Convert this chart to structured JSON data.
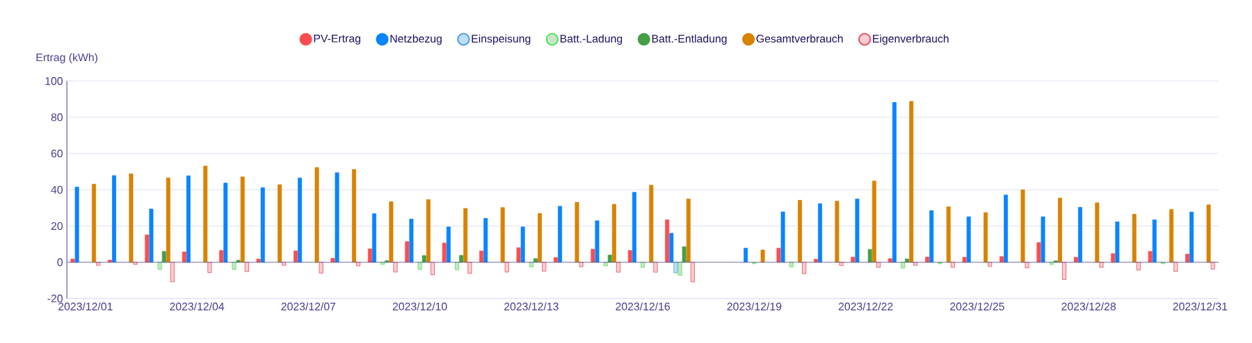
{
  "chart_data": {
    "type": "bar",
    "ylabel": "Ertrag (kWh)",
    "categories": [
      "2023/12/01",
      null,
      null,
      "2023/12/04",
      null,
      null,
      "2023/12/07",
      null,
      null,
      "2023/12/10",
      null,
      null,
      "2023/12/13",
      null,
      null,
      "2023/12/16",
      null,
      null,
      "2023/12/19",
      null,
      null,
      "2023/12/22",
      null,
      null,
      "2023/12/25",
      null,
      null,
      "2023/12/28",
      null,
      null,
      "2023/12/31"
    ],
    "series": [
      {
        "name": "PV-Ertrag",
        "color": "#ff4d4f",
        "values": [
          1.8,
          1.2,
          15.1,
          5.7,
          6.5,
          1.8,
          6.3,
          2.2,
          7.4,
          11.4,
          10.6,
          6.2,
          8.0,
          2.6,
          7.2,
          6.5,
          23.4,
          0,
          0,
          7.8,
          1.7,
          2.9,
          2.0,
          2.9,
          2.8,
          3.1,
          10.9,
          2.8,
          4.8,
          6.0,
          4.5
        ]
      },
      {
        "name": "Netzbezug",
        "color": "#0a84ff",
        "values": [
          41.5,
          47.8,
          29.4,
          47.7,
          43.7,
          41.2,
          46.5,
          49.4,
          26.8,
          23.8,
          19.5,
          24.2,
          19.5,
          30.9,
          22.9,
          38.6,
          16.0,
          0,
          7.8,
          27.8,
          32.3,
          34.9,
          88.2,
          28.5,
          25.1,
          37.1,
          25.1,
          30.3,
          22.3,
          23.4,
          27.7
        ]
      },
      {
        "name": "Einspeisung",
        "color": "#bfdfff",
        "values": [
          0,
          0,
          0,
          0,
          0,
          0,
          0,
          0,
          0,
          0,
          0,
          0,
          0,
          0,
          0,
          0,
          -5.8,
          0,
          0,
          0,
          0,
          0,
          0,
          0,
          0,
          0,
          0,
          0,
          0,
          0,
          0
        ]
      },
      {
        "name": "Batt.-Ladung",
        "color": "#c8e6c9",
        "values": [
          0,
          0,
          -4.0,
          0,
          -4.0,
          0,
          0,
          0,
          -1.2,
          -4.0,
          -4.2,
          0,
          -2.5,
          0,
          -2.0,
          -2.8,
          -7.2,
          0,
          -0.8,
          -2.6,
          0,
          0,
          -3.2,
          -0.8,
          0,
          0,
          -1.2,
          0,
          0,
          -0.8,
          0
        ]
      },
      {
        "name": "Batt.-Entladung",
        "color": "#43a047",
        "values": [
          0,
          0,
          6.0,
          0,
          1.1,
          0,
          0,
          0,
          0.9,
          3.7,
          3.8,
          0,
          2.0,
          0,
          4.0,
          null,
          8.6,
          0,
          0,
          0,
          0,
          7.1,
          1.8,
          0,
          0,
          0,
          0.8,
          0,
          0,
          0,
          0
        ]
      },
      {
        "name": "Gesamtverbrauch",
        "color": "#d98200",
        "values": [
          43.1,
          48.8,
          46.5,
          53.1,
          47.1,
          42.8,
          52.3,
          51.2,
          33.4,
          34.6,
          29.7,
          30.2,
          26.9,
          33.1,
          32.0,
          42.5,
          34.9,
          0,
          6.8,
          34.2,
          33.7,
          44.8,
          88.8,
          30.6,
          27.4,
          40.0,
          35.4,
          32.8,
          26.5,
          29.1,
          31.7
        ]
      },
      {
        "name": "Eigenverbrauch",
        "color": "#ffcdd2",
        "values": [
          -1.7,
          -1.2,
          -10.8,
          -5.7,
          -5.1,
          -1.7,
          -6.0,
          -2.0,
          -5.4,
          -6.9,
          -6.2,
          -5.4,
          -4.9,
          -2.5,
          -5.5,
          -5.5,
          -10.8,
          0,
          0,
          -6.3,
          -1.8,
          -2.8,
          -1.7,
          -2.8,
          -2.3,
          -3.1,
          -9.5,
          -2.8,
          -4.3,
          -5.1,
          -3.8
        ]
      }
    ],
    "ref_lines": [
      {
        "axis": "y",
        "value": 0,
        "color": "#4a3f8f"
      }
    ],
    "ylim": [
      -20,
      100
    ],
    "yticks": [
      -20,
      0,
      20,
      40,
      60,
      80,
      100
    ],
    "grid": "y",
    "legend": "top"
  }
}
